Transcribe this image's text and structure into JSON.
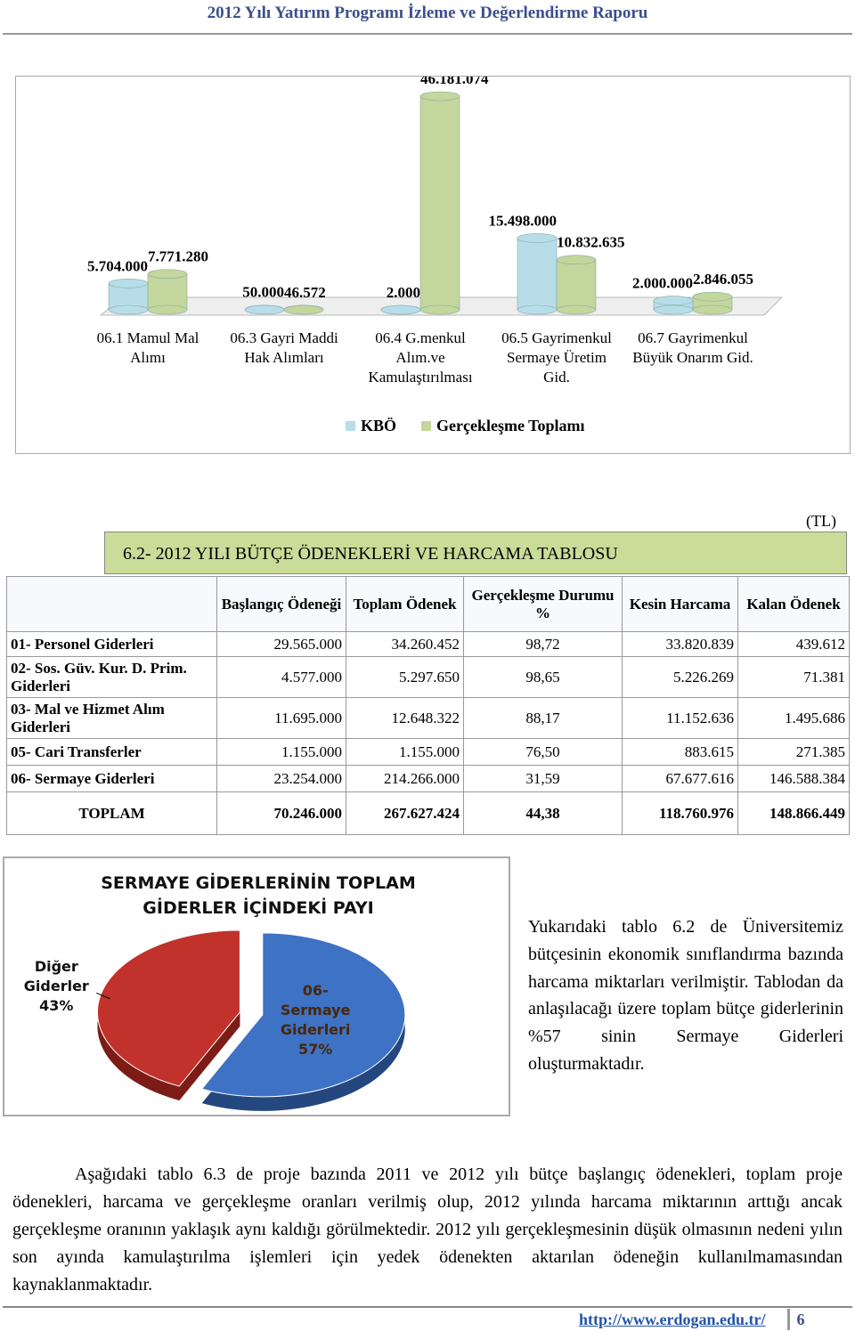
{
  "header": {
    "title": "2012 Yılı Yatırım Programı İzleme ve Değerlendirme Raporu"
  },
  "chart_data": [
    {
      "type": "bar",
      "categories": [
        "06.1 Mamul Mal Alımı",
        "06.3 Gayri Maddi Hak Alımları",
        "06.4 G.menkul Alım.ve Kamulaştırılması",
        "06.5 Gayrimenkul Sermaye Üretim Gid.",
        "06.7 Gayrimenkul Büyük Onarım Gid."
      ],
      "series": [
        {
          "name": "KBÖ",
          "color": "#b7dde8",
          "values": [
            5704000,
            50000,
            2000,
            15498000,
            2000000
          ],
          "value_labels": [
            "5.704.000",
            "50.000",
            "2.000",
            "15.498.000",
            "2.000.000"
          ]
        },
        {
          "name": "Gerçekleşme Toplamı",
          "color": "#c3d69b",
          "values": [
            7771280,
            46572,
            46181074,
            10832635,
            2846055
          ],
          "value_labels": [
            "7.771.280",
            "46.572",
            "46.181.074",
            "10.832.635",
            "2.846.055"
          ]
        }
      ],
      "legend": "bottom"
    },
    {
      "type": "pie",
      "title": "SERMAYE GİDERLERİNİN TOPLAM GİDERLER İÇİNDEKİ PAYI",
      "categories": [
        "Diğer Giderler",
        "06- Sermaye Giderleri"
      ],
      "values": [
        43,
        57
      ],
      "value_labels": [
        "43%",
        "57%"
      ],
      "colors": [
        "#c0322b",
        "#3d72c4"
      ]
    }
  ],
  "table": {
    "unit": "(TL)",
    "title": "6.2- 2012 YILI BÜTÇE ÖDENEKLERİ VE HARCAMA TABLOSU",
    "columns": [
      "Başlangıç Ödeneği",
      "Toplam Ödenek",
      "Gerçekleşme Durumu %",
      "Kesin Harcama",
      "Kalan Ödenek"
    ],
    "rows": [
      [
        "01- Personel Giderleri",
        "29.565.000",
        "34.260.452",
        "98,72",
        "33.820.839",
        "439.612"
      ],
      [
        "02- Sos. Güv. Kur. D. Prim. Giderleri",
        "4.577.000",
        "5.297.650",
        "98,65",
        "5.226.269",
        "71.381"
      ],
      [
        "03- Mal ve Hizmet Alım Giderleri",
        "11.695.000",
        "12.648.322",
        "88,17",
        "11.152.636",
        "1.495.686"
      ],
      [
        "05- Cari Transferler",
        "1.155.000",
        "1.155.000",
        "76,50",
        "883.615",
        "271.385"
      ],
      [
        "06- Sermaye Giderleri",
        "23.254.000",
        "214.266.000",
        "31,59",
        "67.677.616",
        "146.588.384"
      ],
      [
        "TOPLAM",
        "70.246.000",
        "267.627.424",
        "44,38",
        "118.760.976",
        "148.866.449"
      ]
    ]
  },
  "paragraphs": [
    "Yukarıdaki tablo 6.2 de Üniversitemiz bütçesinin ekonomik sınıflandırma bazında harcama miktarları verilmiştir. Tablodan da anlaşılacağı üzere toplam bütçe giderlerinin %57 sinin Sermaye Giderleri oluşturmaktadır.",
    "Aşağıdaki tablo 6.3 de proje bazında 2011 ve 2012 yılı bütçe başlangıç ödenekleri, toplam proje ödenekleri, harcama ve gerçekleşme oranları verilmiş olup, 2012 yılında harcama miktarının arttığı ancak gerçekleşme oranının yaklaşık aynı kaldığı görülmektedir. 2012 yılı gerçekleşmesinin düşük olmasının nedeni yılın son ayında kamulaştırılma işlemleri için yedek ödenekten aktarılan ödeneğin kullanılmamasından kaynaklanmaktadır."
  ],
  "footer": {
    "url": "http://www.erdogan.edu.tr/",
    "page": "6"
  }
}
